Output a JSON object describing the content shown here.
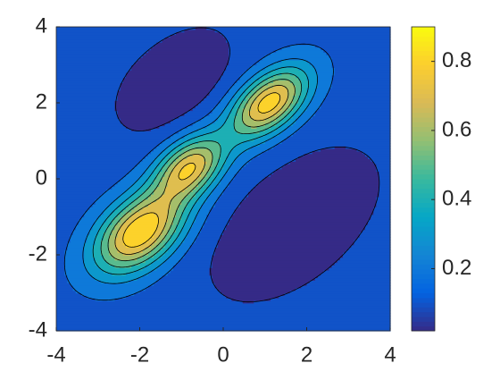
{
  "chart_data": {
    "type": "contour",
    "xlim": [
      -4,
      4
    ],
    "ylim": [
      -4,
      4
    ],
    "xticks": [
      -4,
      -2,
      0,
      2,
      4
    ],
    "yticks": [
      -4,
      -2,
      0,
      2,
      4
    ],
    "levels": [
      0.1,
      0.2,
      0.3,
      0.4,
      0.5,
      0.6,
      0.7,
      0.8
    ],
    "clim": [
      0.02,
      0.9
    ],
    "colorbar_ticks": [
      0.2,
      0.4,
      0.6,
      0.8
    ],
    "colormap": [
      "#352a87",
      "#0363e1",
      "#1485d4",
      "#06a7c6",
      "#38b99e",
      "#92bf73",
      "#d9ba56",
      "#fcce2e",
      "#f9fb0e"
    ],
    "line_color": "#000000"
  }
}
